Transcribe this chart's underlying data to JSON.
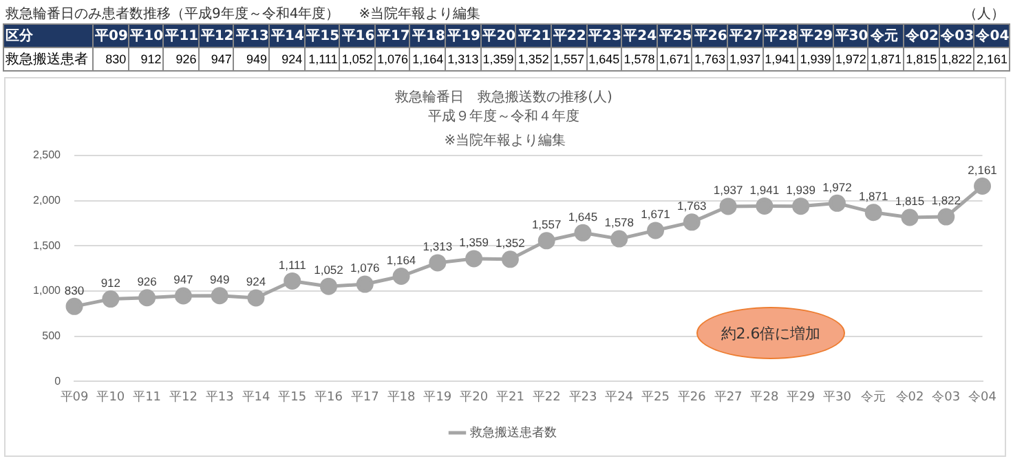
{
  "chart_data": {
    "type": "line",
    "title": "救急輪番日　救急搬送数の推移(人)",
    "subtitle": "平成９年度～令和４年度",
    "annotations": [
      "救急輪番日のみ患者数推移（平成9年度～令和4年度）",
      "※当院年報より編集",
      "（人）",
      "区分",
      "救急搬送患者",
      "※当院年報より編集",
      "約2.6倍に増加"
    ],
    "categories": [
      "平09",
      "平10",
      "平11",
      "平12",
      "平13",
      "平14",
      "平15",
      "平16",
      "平17",
      "平18",
      "平19",
      "平20",
      "平21",
      "平22",
      "平23",
      "平24",
      "平25",
      "平26",
      "平27",
      "平28",
      "平29",
      "平30",
      "令元",
      "令02",
      "令03",
      "令04"
    ],
    "series": [
      {
        "name": "救急搬送患者数",
        "color": "#a5a5a5",
        "values": [
          830,
          912,
          926,
          947,
          949,
          924,
          1111,
          1052,
          1076,
          1164,
          1313,
          1359,
          1352,
          1557,
          1645,
          1578,
          1671,
          1763,
          1937,
          1941,
          1939,
          1972,
          1871,
          1815,
          1822,
          2161
        ],
        "value_labels": [
          "830",
          "912",
          "926",
          "947",
          "949",
          "924",
          "1,111",
          "1,052",
          "1,076",
          "1,164",
          "1,313",
          "1,359",
          "1,352",
          "1,557",
          "1,645",
          "1,578",
          "1,671",
          "1,763",
          "1,937",
          "1,941",
          "1,939",
          "1,972",
          "1,871",
          "1,815",
          "1,822",
          "2,161"
        ]
      }
    ],
    "ylim": [
      0,
      2500
    ],
    "yticks": [
      {
        "value": 0,
        "label": "0"
      },
      {
        "value": 500,
        "label": "500"
      },
      {
        "value": 1000,
        "label": "1,000"
      },
      {
        "value": 1500,
        "label": "1,500"
      },
      {
        "value": 2000,
        "label": "2,000"
      },
      {
        "value": 2500,
        "label": "2,500"
      }
    ],
    "grid": "y",
    "legend": "bottom",
    "marker": "circle",
    "line_style": "solid"
  }
}
